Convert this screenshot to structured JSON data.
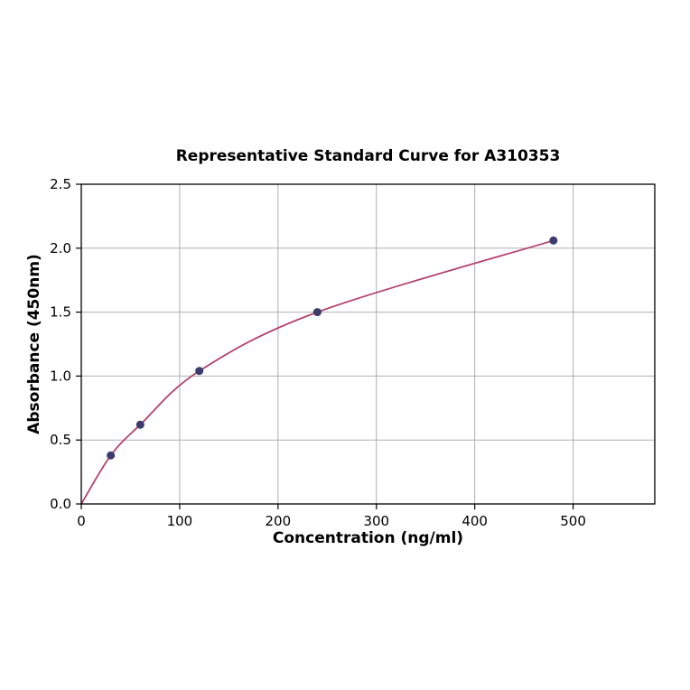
{
  "page": {
    "background": "#ffffff"
  },
  "chart_data": {
    "type": "scatter",
    "title": "Representative Standard Curve for A310353",
    "xlabel": "Concentration (ng/ml)",
    "ylabel": "Absorbance (450nm)",
    "xlim": [
      0,
      583
    ],
    "ylim": [
      0,
      2.5
    ],
    "xticks": [
      0,
      100,
      200,
      300,
      400,
      500
    ],
    "xtick_labels": [
      "0",
      "100",
      "200",
      "300",
      "400",
      "500"
    ],
    "yticks": [
      0,
      0.5,
      1.0,
      1.5,
      2.0,
      2.5
    ],
    "ytick_labels": [
      "0.0",
      "0.5",
      "1.0",
      "1.5",
      "2.0",
      "2.5"
    ],
    "grid": true,
    "legend": null,
    "colors": {
      "grid": "#b0b0b0",
      "axis": "#000000",
      "curve": "#b5446b",
      "points": "#3b3b6e"
    },
    "series": [
      {
        "name": "fit-curve",
        "type": "line",
        "color": "#b5446b",
        "x": [
          0,
          30,
          60,
          120,
          240,
          480
        ],
        "y": [
          0.0,
          0.38,
          0.62,
          1.04,
          1.5,
          2.06
        ]
      },
      {
        "name": "standards",
        "type": "scatter",
        "color": "#3b3b6e",
        "x": [
          30,
          60,
          120,
          240,
          480
        ],
        "y": [
          0.38,
          0.62,
          1.04,
          1.5,
          2.06
        ]
      }
    ]
  }
}
